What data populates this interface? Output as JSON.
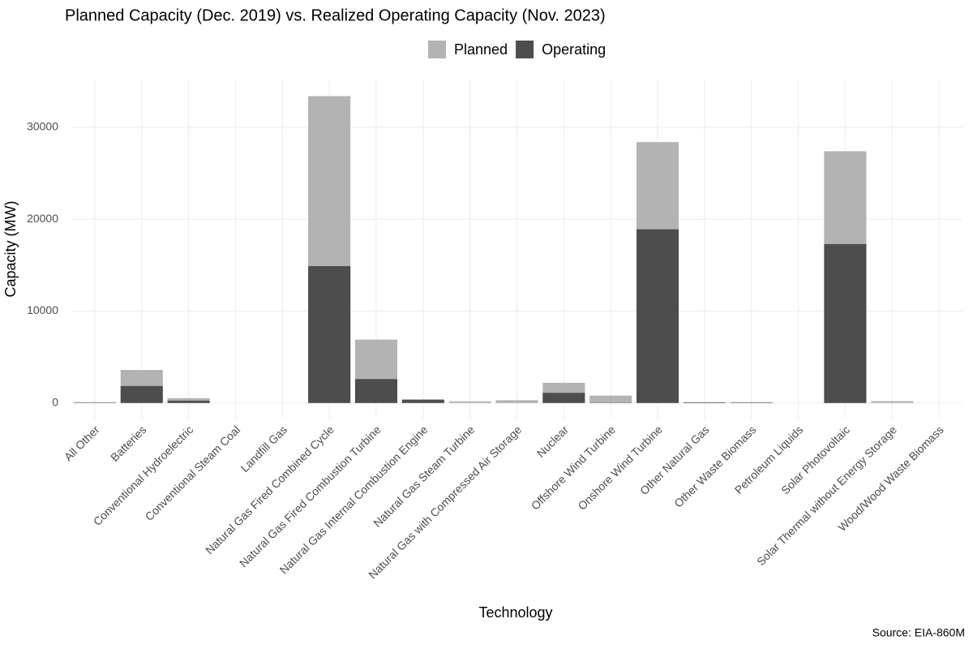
{
  "chart_data": {
    "type": "bar",
    "title": "Planned Capacity (Dec. 2019) vs. Realized Operating Capacity (Nov. 2023)",
    "x_label": "Technology",
    "y_label": "Capacity (MW)",
    "source": "Source: EIA-860M",
    "categories": [
      "All Other",
      "Batteries",
      "Conventional Hydroelectric",
      "Conventional Steam Coal",
      "Landfill Gas",
      "Natural Gas Fired Combined Cycle",
      "Natural Gas Fired Combustion Turbine",
      "Natural Gas Internal Combustion Engine",
      "Natural Gas Steam Turbine",
      "Natural Gas with Compressed Air Storage",
      "Nuclear",
      "Offshore Wind Turbine",
      "Onshore Wind Turbine",
      "Other Natural Gas",
      "Other Waste Biomass",
      "Petroleum Liquids",
      "Solar Photovoltaic",
      "Solar Thermal without Energy Storage",
      "Wood/Wood Waste Biomass"
    ],
    "series": [
      {
        "name": "Planned",
        "color": "#b3b3b3",
        "values": [
          100,
          3600,
          530,
          0,
          0,
          33400,
          6900,
          400,
          180,
          300,
          2200,
          800,
          28400,
          100,
          100,
          0,
          27400,
          200,
          0
        ]
      },
      {
        "name": "Operating",
        "color": "#4d4d4d",
        "values": [
          20,
          1850,
          250,
          0,
          0,
          14900,
          2600,
          350,
          0,
          0,
          1100,
          30,
          18900,
          50,
          30,
          0,
          17300,
          0,
          0
        ]
      }
    ],
    "ylim": [
      -1700,
      35300
    ],
    "yticks": [
      0,
      10000,
      20000,
      30000
    ],
    "grid": true,
    "legend_position": "top"
  }
}
